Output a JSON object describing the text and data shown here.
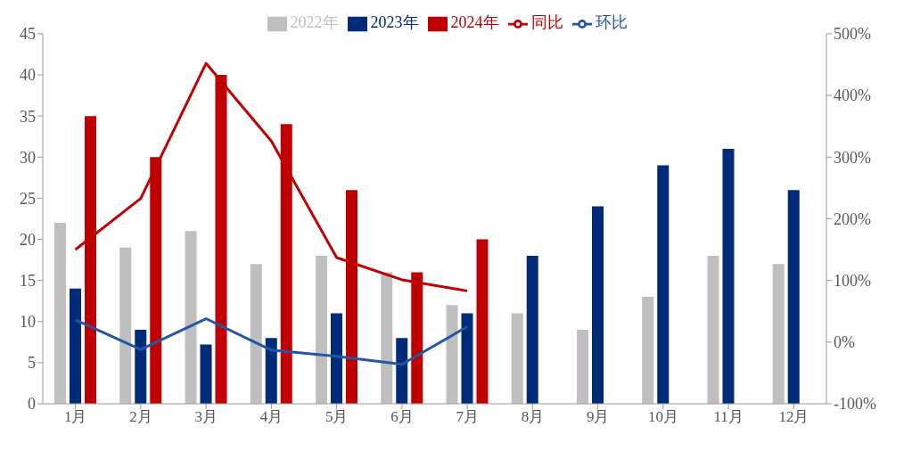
{
  "chart_data": {
    "type": "bar",
    "categories": [
      "1月",
      "2月",
      "3月",
      "4月",
      "5月",
      "6月",
      "7月",
      "8月",
      "9月",
      "10月",
      "11月",
      "12月"
    ],
    "series": [
      {
        "name": "2022年",
        "color": "#bfbfbf",
        "values": [
          22,
          19,
          21,
          17,
          18,
          16,
          12,
          11,
          9,
          13,
          18,
          17
        ]
      },
      {
        "name": "2023年",
        "color": "#002b78",
        "values": [
          14,
          9,
          7.2,
          8,
          11,
          8,
          11,
          18,
          24,
          29,
          31,
          26
        ]
      },
      {
        "name": "2024年",
        "color": "#c00000",
        "values": [
          35,
          30,
          40,
          34,
          26,
          16,
          20,
          null,
          null,
          null,
          null,
          null
        ]
      },
      {
        "name": "同比",
        "type": "line",
        "axis": "y2",
        "color": "#c00000",
        "values": [
          150,
          233,
          452,
          326,
          137,
          101,
          83,
          null,
          null,
          null,
          null,
          null
        ]
      },
      {
        "name": "环比",
        "type": "line",
        "axis": "y2",
        "color": "#2456a8",
        "values": [
          36,
          -12,
          38,
          -13,
          -23,
          -36,
          25,
          null,
          null,
          null,
          null,
          null
        ]
      }
    ],
    "ylim": [
      0,
      45
    ],
    "yticks": [
      0,
      5,
      10,
      15,
      20,
      25,
      30,
      35,
      40,
      45
    ],
    "y2lim": [
      -100,
      500
    ],
    "y2ticks": [
      {
        "value": -100,
        "label": "-100%"
      },
      {
        "value": 0,
        "label": "0%"
      },
      {
        "value": 100,
        "label": "100%"
      },
      {
        "value": 200,
        "label": "200%"
      },
      {
        "value": 300,
        "label": "300%"
      },
      {
        "value": 400,
        "label": "400%"
      },
      {
        "value": 500,
        "label": "500%"
      }
    ],
    "grid": false,
    "legend": "top",
    "marker": "none",
    "line_style": "solid"
  }
}
